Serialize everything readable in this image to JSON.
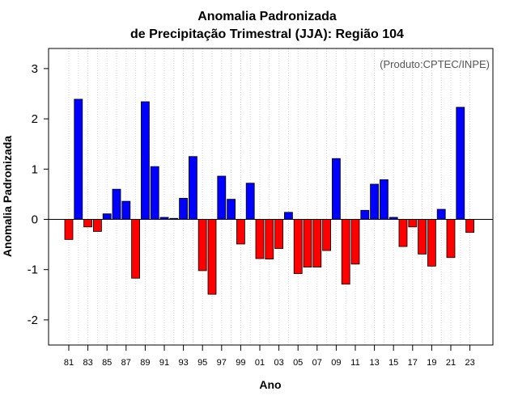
{
  "chart_data": {
    "type": "bar",
    "title": "Anomalia Padronizada",
    "subtitle": "de Precipitação Trimestral (JJA): Região 104",
    "xlabel": "Ano",
    "ylabel": "Anomalia Padronizada",
    "credit": "(Produto:CPTEC/INPE)",
    "ylim": [
      -2.5,
      3.4
    ],
    "yticks": [
      -2,
      -1,
      0,
      1,
      2,
      3
    ],
    "grid": true,
    "categories": [
      "1981",
      "1982",
      "1983",
      "1984",
      "1985",
      "1986",
      "1987",
      "1988",
      "1989",
      "1990",
      "1991",
      "1992",
      "1993",
      "1994",
      "1995",
      "1996",
      "1997",
      "1998",
      "1999",
      "2000",
      "2001",
      "2002",
      "2003",
      "2004",
      "2005",
      "2006",
      "2007",
      "2008",
      "2009",
      "2010",
      "2011",
      "2012",
      "2013",
      "2014",
      "2015",
      "2016",
      "2017",
      "2018",
      "2019",
      "2020",
      "2021",
      "2022",
      "2023"
    ],
    "tick_labels": [
      "81",
      "",
      "83",
      "",
      "85",
      "",
      "87",
      "",
      "89",
      "",
      "91",
      "",
      "93",
      "",
      "95",
      "",
      "97",
      "",
      "99",
      "",
      "01",
      "",
      "03",
      "",
      "05",
      "",
      "07",
      "",
      "09",
      "",
      "11",
      "",
      "13",
      "",
      "15",
      "",
      "17",
      "",
      "19",
      "",
      "21",
      "",
      "23"
    ],
    "values": [
      -0.4,
      2.39,
      -0.15,
      -0.24,
      0.11,
      0.6,
      0.36,
      -1.17,
      2.34,
      1.05,
      0.04,
      0.02,
      0.42,
      1.25,
      -1.02,
      -1.49,
      0.86,
      0.4,
      -0.49,
      0.72,
      -0.78,
      -0.79,
      -0.58,
      0.14,
      -1.08,
      -0.95,
      -0.95,
      -0.62,
      1.21,
      -1.29,
      -0.89,
      0.18,
      0.7,
      0.79,
      0.04,
      -0.54,
      -0.15,
      -0.69,
      -0.93,
      0.2,
      -0.76,
      2.23,
      -0.26
    ],
    "colors": {
      "positive": "#0000ff",
      "negative": "#ff0000",
      "grid": "#d3d3d3",
      "axis": "#000000",
      "credit": "#555555"
    }
  }
}
